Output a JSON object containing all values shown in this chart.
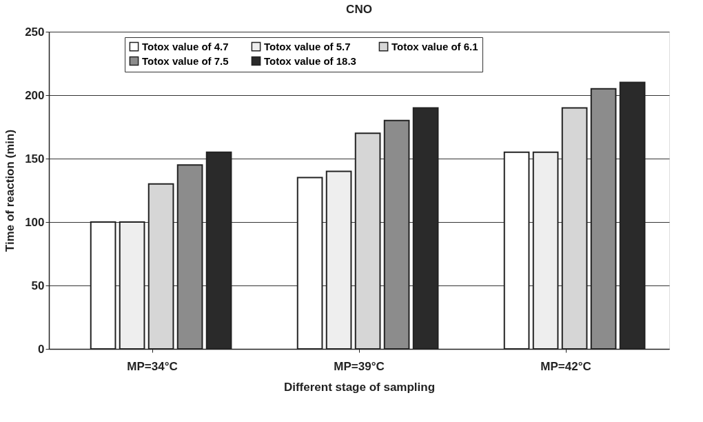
{
  "chart_data": {
    "type": "bar",
    "title": "CNO",
    "xlabel": "Different stage of sampling",
    "ylabel": "Time of reaction (min)",
    "categories": [
      "MP=34°C",
      "MP=39°C",
      "MP=42°C"
    ],
    "series": [
      {
        "name": "Totox value of 4.7",
        "color": "#ffffff",
        "values": [
          100,
          135,
          155
        ]
      },
      {
        "name": "Totox value of 5.7",
        "color": "#eeeeee",
        "values": [
          100,
          140,
          155
        ]
      },
      {
        "name": "Totox value of 6.1",
        "color": "#d6d6d6",
        "values": [
          130,
          170,
          190
        ]
      },
      {
        "name": "Totox value of 7.5",
        "color": "#8c8c8c",
        "values": [
          145,
          180,
          205
        ]
      },
      {
        "name": "Totox value of 18.3",
        "color": "#2a2a2a",
        "values": [
          155,
          190,
          210
        ]
      }
    ],
    "ylim": [
      0,
      250
    ],
    "yticks": [
      0,
      50,
      100,
      150,
      200,
      250
    ],
    "grid": "y",
    "legend": "top"
  }
}
